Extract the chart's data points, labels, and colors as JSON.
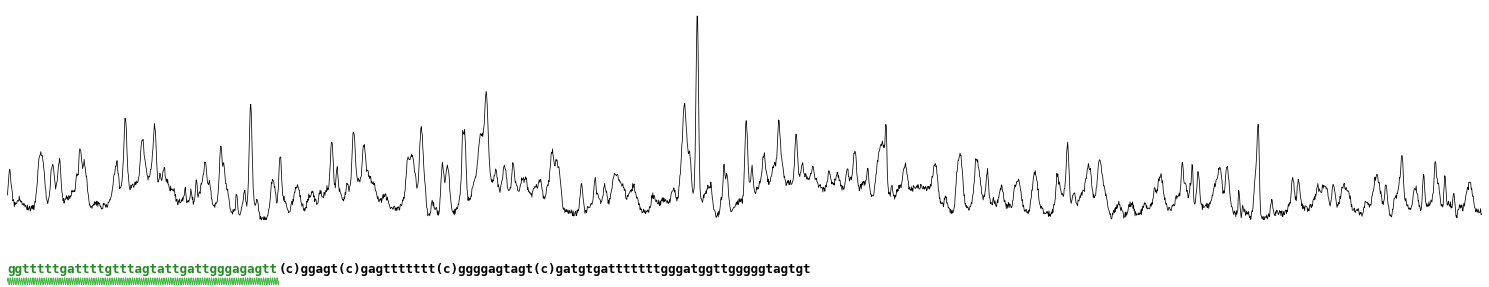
{
  "sequence_plain": "ggtttttgattttgtttagtattgattgggagagtt",
  "sequence_rest": "(c)ggagt(c)gagttttttt(c)ggggagtagt(c)gatgtgatttttttgggatggttgggggtagtgt",
  "text_color_plain": "#228B22",
  "text_color_rest": "#000000",
  "line_color": "#000000",
  "background_color": "#ffffff",
  "fig_width": 14.89,
  "fig_height": 2.87,
  "dpi": 100,
  "num_points": 3000,
  "seed": 7
}
